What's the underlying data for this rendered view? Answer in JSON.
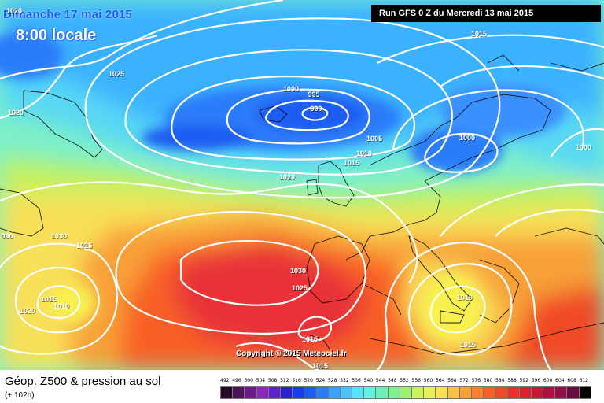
{
  "header": {
    "date": "Dimanche 17 mai 2015",
    "time": "8:00 locale",
    "run": "Run GFS 0 Z du Mercredi 13 mai 2015"
  },
  "copyright": "Copyright © 2015 Meteociel.fr",
  "footer": {
    "title": "Géop. Z500 & pression au sol",
    "subtitle": "(+ 102h)"
  },
  "isobar_labels": [
    "1020",
    "1025",
    "1020",
    "1000",
    "995",
    "990",
    "1005",
    "1010",
    "1015",
    "1015",
    "1000",
    "1000",
    "1020",
    "1030",
    "1025",
    "030",
    "1015",
    "1010",
    "1020",
    "1030",
    "1025",
    "1015",
    "1015",
    "1010",
    "1015"
  ],
  "scale": {
    "labels": [
      "492",
      "496",
      "500",
      "504",
      "508",
      "512",
      "516",
      "520",
      "524",
      "528",
      "532",
      "536",
      "540",
      "544",
      "548",
      "552",
      "556",
      "560",
      "564",
      "568",
      "572",
      "576",
      "580",
      "584",
      "588",
      "592",
      "596",
      "600",
      "604",
      "608",
      "612"
    ],
    "colors": [
      "#2a0a2a",
      "#4a1456",
      "#6a1b8a",
      "#8a28b6",
      "#5a22c8",
      "#2a20d6",
      "#1a3ce6",
      "#1a5cf2",
      "#2a7cfa",
      "#3aa0ff",
      "#4ac4ff",
      "#5ae0f8",
      "#64f0e0",
      "#6cf0b8",
      "#80f090",
      "#a0f070",
      "#c8f060",
      "#e8f058",
      "#f8e058",
      "#f8c048",
      "#f8a038",
      "#f88030",
      "#f86028",
      "#f04828",
      "#e83030",
      "#d82030",
      "#c81838",
      "#b01040",
      "#901048",
      "#6a0a40",
      "#000000"
    ]
  }
}
